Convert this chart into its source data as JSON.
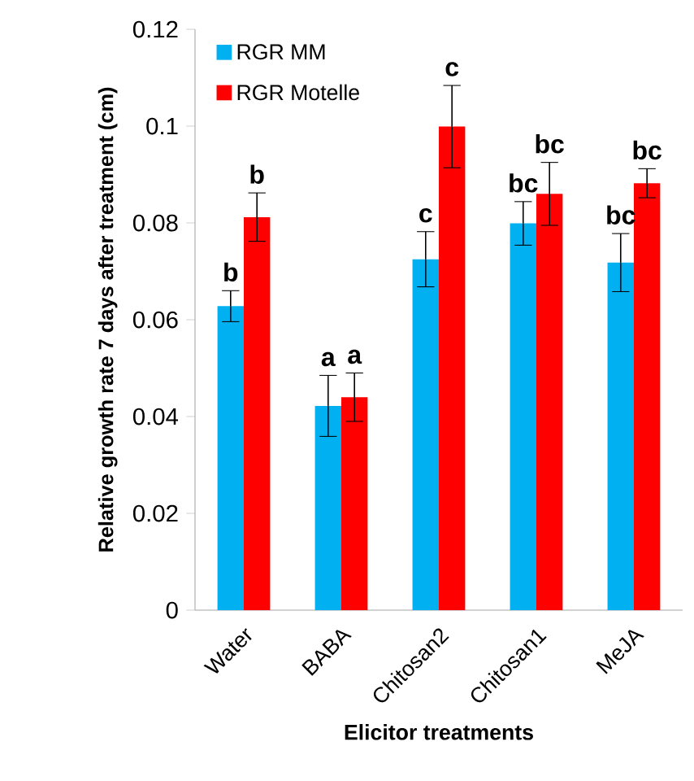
{
  "chart_data": {
    "type": "bar",
    "xlabel": "Elicitor treatments",
    "ylabel": "Relative growth rate 7 days after treatment (cm)",
    "categories": [
      "Water",
      "BABA",
      "Chitosan2",
      "Chitosan1",
      "MeJA"
    ],
    "series": [
      {
        "name": "RGR MM",
        "color": "#00b0f0",
        "values": [
          0.0628,
          0.0422,
          0.0725,
          0.0799,
          0.0718
        ],
        "errors": [
          0.0032,
          0.0063,
          0.0057,
          0.0045,
          0.006
        ]
      },
      {
        "name": "RGR Motelle",
        "color": "#ff0000",
        "values": [
          0.0812,
          0.044,
          0.0999,
          0.086,
          0.0882
        ],
        "errors": [
          0.005,
          0.005,
          0.0085,
          0.0065,
          0.003
        ]
      }
    ],
    "annotations": [
      "b",
      "b",
      "a",
      "a",
      "c",
      "c",
      "bc",
      "bc",
      "bc",
      "bc"
    ],
    "ylim": [
      0,
      0.12
    ],
    "yticks": [
      0,
      0.02,
      0.04,
      0.06,
      0.08,
      0.1,
      0.12
    ],
    "grid": false,
    "legend": "top left"
  }
}
